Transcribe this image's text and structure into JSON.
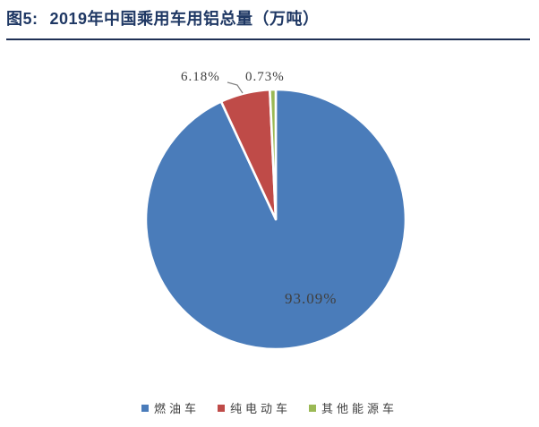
{
  "header": {
    "figure_label": "图5:",
    "title": "2019年中国乘用车用铝总量（万吨）"
  },
  "chart_data": {
    "type": "pie",
    "title": "2019年中国乘用车用铝总量（万吨）",
    "categories": [
      "燃油车",
      "纯电动车",
      "其他能源车"
    ],
    "values": [
      93.09,
      6.18,
      0.73
    ],
    "labels": [
      "93.09%",
      "6.18%",
      "0.73%"
    ],
    "colors": [
      "#4A7CBA",
      "#BF4B48",
      "#9BB955"
    ],
    "unit": "%",
    "legend_position": "bottom",
    "start_angle_deg": 0,
    "direction": "clockwise",
    "slice_border_color": "#FFFFFF",
    "leader_line_color": "#7F7F7F"
  },
  "styles": {
    "title_color": "#1F3864",
    "underline_color": "#1F3055",
    "data_label_color": "#404040",
    "legend_text_color": "#3F3F3F",
    "background": "#FFFFFF"
  }
}
